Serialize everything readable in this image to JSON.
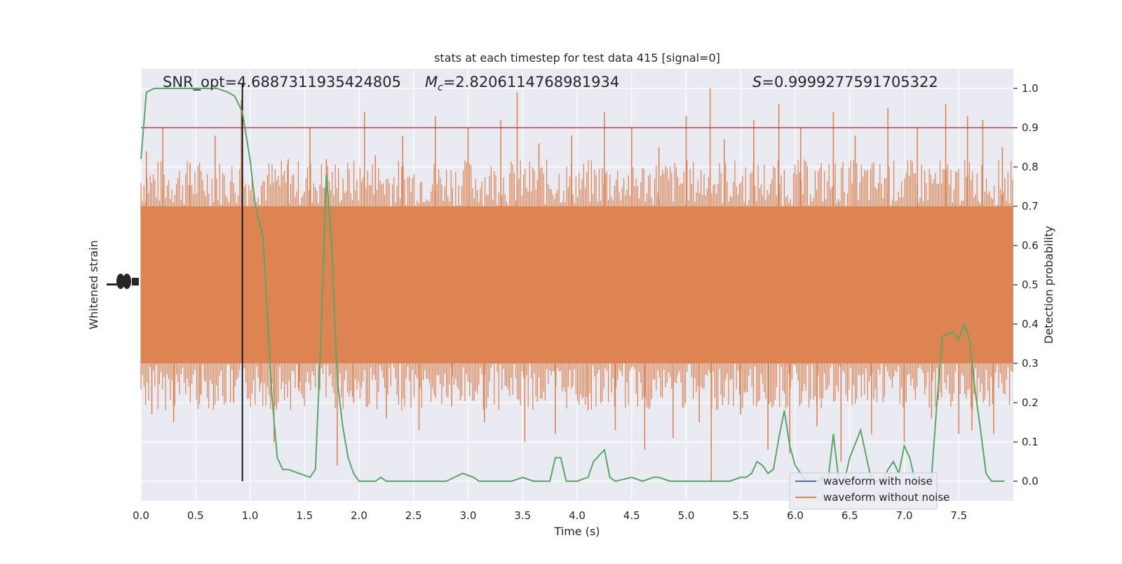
{
  "chart_data": {
    "type": "line",
    "title": "stats at each timestep for test data 415 [signal=0]",
    "xlabel": "Time (s)",
    "ylabel_left": "Whitened strain",
    "ylabel_right": "Detection probability",
    "xlim": [
      0.0,
      8.0
    ],
    "ylim_right": [
      -0.05,
      1.05
    ],
    "x_ticks": [
      0.0,
      0.5,
      1.0,
      1.5,
      2.0,
      2.5,
      3.0,
      3.5,
      4.0,
      4.5,
      5.0,
      5.5,
      6.0,
      6.5,
      7.0,
      7.5
    ],
    "x_tick_labels": [
      "0.0",
      "0.5",
      "1.0",
      "1.5",
      "2.0",
      "2.5",
      "3.0",
      "3.5",
      "4.0",
      "4.5",
      "5.0",
      "5.5",
      "6.0",
      "6.5",
      "7.0",
      "7.5"
    ],
    "y_right_ticks": [
      0.0,
      0.1,
      0.2,
      0.3,
      0.4,
      0.5,
      0.6,
      0.7,
      0.8,
      0.9,
      1.0
    ],
    "y_right_tick_labels": [
      "0.0",
      "0.1",
      "0.2",
      "0.3",
      "0.4",
      "0.5",
      "0.6",
      "0.7",
      "0.8",
      "0.9",
      "1.0"
    ],
    "grid": true,
    "legend_position": "lower-right",
    "annotations": {
      "snr": "SNR_opt=4.6887311935424805",
      "mc_symbol": "M",
      "mc_sub": "c",
      "mc_value": "=2.8206114768981934",
      "s_symbol": "S",
      "s_value": "=0.9999277591705322"
    },
    "threshold": {
      "value": 0.9,
      "color": "#c03d3e"
    },
    "vertical_marker": {
      "x": 0.93,
      "color": "#000000"
    },
    "series": [
      {
        "name": "waveform with noise",
        "color": "#4c72b0",
        "note_values": "flat; fully hidden behind the orange trace"
      },
      {
        "name": "waveform without noise",
        "color": "#dd8452",
        "band_low": 0.3,
        "band_high": 0.7,
        "spikes": [
          {
            "x": 0.05,
            "y": 0.84
          },
          {
            "x": 0.1,
            "y": 0.17
          },
          {
            "x": 0.2,
            "y": 0.9
          },
          {
            "x": 0.3,
            "y": 0.15
          },
          {
            "x": 0.45,
            "y": 0.81
          },
          {
            "x": 0.55,
            "y": 0.22
          },
          {
            "x": 0.68,
            "y": 0.88
          },
          {
            "x": 0.85,
            "y": 0.2
          },
          {
            "x": 0.92,
            "y": 0.97
          },
          {
            "x": 1.1,
            "y": 0.25
          },
          {
            "x": 1.22,
            "y": 0.1
          },
          {
            "x": 1.35,
            "y": 0.82
          },
          {
            "x": 1.45,
            "y": 0.23
          },
          {
            "x": 1.55,
            "y": 0.9
          },
          {
            "x": 1.7,
            "y": 0.82
          },
          {
            "x": 1.8,
            "y": 0.04
          },
          {
            "x": 1.95,
            "y": 0.2
          },
          {
            "x": 2.05,
            "y": 0.94
          },
          {
            "x": 2.15,
            "y": 0.83
          },
          {
            "x": 2.25,
            "y": 0.16
          },
          {
            "x": 2.4,
            "y": 0.88
          },
          {
            "x": 2.55,
            "y": 0.13
          },
          {
            "x": 2.7,
            "y": 0.93
          },
          {
            "x": 2.85,
            "y": 0.19
          },
          {
            "x": 3.0,
            "y": 0.9
          },
          {
            "x": 3.15,
            "y": 0.15
          },
          {
            "x": 3.3,
            "y": 0.92
          },
          {
            "x": 3.45,
            "y": 0.99
          },
          {
            "x": 3.52,
            "y": 0.1
          },
          {
            "x": 3.65,
            "y": 0.86
          },
          {
            "x": 3.8,
            "y": 0.12
          },
          {
            "x": 3.95,
            "y": 0.88
          },
          {
            "x": 4.1,
            "y": 0.18
          },
          {
            "x": 4.25,
            "y": 0.94
          },
          {
            "x": 4.35,
            "y": 0.13
          },
          {
            "x": 4.5,
            "y": 0.9
          },
          {
            "x": 4.62,
            "y": 0.08
          },
          {
            "x": 4.75,
            "y": 0.85
          },
          {
            "x": 4.88,
            "y": 0.11
          },
          {
            "x": 5.0,
            "y": 0.93
          },
          {
            "x": 5.12,
            "y": 0.15
          },
          {
            "x": 5.22,
            "y": 1.0
          },
          {
            "x": 5.23,
            "y": 0.0
          },
          {
            "x": 5.35,
            "y": 0.87
          },
          {
            "x": 5.5,
            "y": 0.17
          },
          {
            "x": 5.62,
            "y": 0.92
          },
          {
            "x": 5.75,
            "y": 0.08
          },
          {
            "x": 5.85,
            "y": 0.96
          },
          {
            "x": 5.95,
            "y": 0.07
          },
          {
            "x": 6.05,
            "y": 0.9
          },
          {
            "x": 6.2,
            "y": 0.14
          },
          {
            "x": 6.35,
            "y": 0.94
          },
          {
            "x": 6.42,
            "y": 0.05
          },
          {
            "x": 6.55,
            "y": 0.88
          },
          {
            "x": 6.7,
            "y": 0.12
          },
          {
            "x": 6.85,
            "y": 0.95
          },
          {
            "x": 7.0,
            "y": 0.1
          },
          {
            "x": 7.12,
            "y": 0.9
          },
          {
            "x": 7.25,
            "y": 0.16
          },
          {
            "x": 7.38,
            "y": 0.96
          },
          {
            "x": 7.5,
            "y": 0.12
          },
          {
            "x": 7.58,
            "y": 0.93
          },
          {
            "x": 7.62,
            "y": 0.13
          },
          {
            "x": 7.72,
            "y": 0.92
          },
          {
            "x": 7.82,
            "y": 0.12
          },
          {
            "x": 7.9,
            "y": 0.85
          }
        ]
      },
      {
        "name": "",
        "color": "#55a868",
        "x": [
          0.0,
          0.05,
          0.12,
          0.2,
          0.3,
          0.5,
          0.7,
          0.8,
          0.86,
          0.93,
          1.0,
          1.05,
          1.12,
          1.2,
          1.25,
          1.3,
          1.35,
          1.45,
          1.55,
          1.6,
          1.65,
          1.7,
          1.75,
          1.8,
          1.85,
          1.9,
          1.95,
          2.0,
          2.05,
          2.15,
          2.2,
          2.25,
          2.3,
          2.4,
          2.5,
          2.6,
          2.7,
          2.8,
          2.95,
          3.05,
          3.1,
          3.2,
          3.3,
          3.4,
          3.5,
          3.6,
          3.7,
          3.75,
          3.8,
          3.85,
          3.9,
          4.0,
          4.1,
          4.15,
          4.25,
          4.3,
          4.35,
          4.5,
          4.6,
          4.7,
          4.75,
          4.85,
          4.9,
          5.0,
          5.2,
          5.3,
          5.4,
          5.5,
          5.55,
          5.6,
          5.65,
          5.7,
          5.75,
          5.8,
          5.85,
          5.9,
          5.95,
          6.0,
          6.05,
          6.1,
          6.15,
          6.2,
          6.25,
          6.3,
          6.35,
          6.4,
          6.45,
          6.5,
          6.6,
          6.7,
          6.8,
          6.85,
          6.9,
          6.95,
          7.0,
          7.05,
          7.1,
          7.15,
          7.2,
          7.25,
          7.3,
          7.35,
          7.45,
          7.5,
          7.55,
          7.6,
          7.65,
          7.7,
          7.75,
          7.8,
          7.85,
          7.92
        ],
        "y": [
          0.82,
          0.99,
          1.0,
          1.0,
          1.0,
          1.0,
          1.0,
          0.99,
          0.98,
          0.94,
          0.82,
          0.7,
          0.62,
          0.22,
          0.06,
          0.03,
          0.03,
          0.02,
          0.01,
          0.03,
          0.36,
          0.78,
          0.6,
          0.26,
          0.14,
          0.06,
          0.02,
          0.0,
          0.0,
          0.0,
          0.01,
          0.0,
          0.0,
          0.0,
          0.0,
          0.0,
          0.0,
          0.0,
          0.02,
          0.01,
          0.0,
          0.0,
          0.0,
          0.0,
          0.01,
          0.0,
          0.0,
          0.0,
          0.06,
          0.06,
          0.0,
          0.0,
          0.01,
          0.05,
          0.08,
          0.01,
          0.0,
          0.01,
          0.0,
          0.01,
          0.01,
          0.0,
          0.0,
          0.0,
          0.0,
          0.0,
          0.0,
          0.01,
          0.01,
          0.02,
          0.05,
          0.04,
          0.02,
          0.03,
          0.11,
          0.18,
          0.09,
          0.04,
          0.02,
          0.0,
          0.0,
          0.0,
          0.01,
          0.0,
          0.12,
          0.0,
          0.0,
          0.06,
          0.13,
          0.0,
          0.0,
          0.03,
          0.05,
          0.02,
          0.09,
          0.06,
          0.0,
          0.0,
          0.0,
          0.01,
          0.2,
          0.37,
          0.38,
          0.36,
          0.4,
          0.36,
          0.23,
          0.13,
          0.02,
          0.0,
          0.0,
          0.0
        ]
      }
    ],
    "legend_entries": [
      "waveform with noise",
      "waveform without noise"
    ]
  }
}
